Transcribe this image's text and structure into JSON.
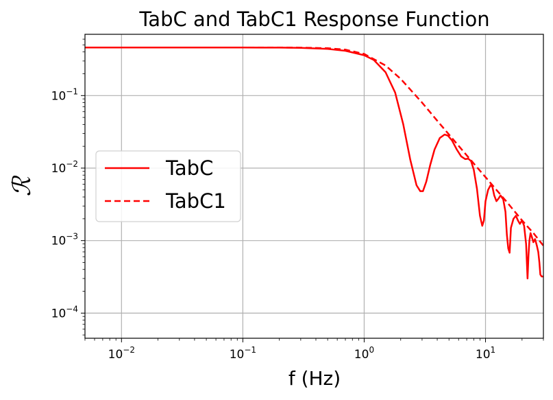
{
  "chart_data": {
    "type": "line",
    "title": "TabC and TabC1 Response Function",
    "xlabel": "f (Hz)",
    "ylabel": "ℛ",
    "xscale": "log",
    "yscale": "log",
    "xlim": [
      0.005,
      30
    ],
    "ylim": [
      4.5e-05,
      0.7
    ],
    "xticks": [
      {
        "value": 0.01,
        "base": "10",
        "exp": "−2"
      },
      {
        "value": 0.1,
        "base": "10",
        "exp": "−1"
      },
      {
        "value": 1,
        "base": "10",
        "exp": "0"
      },
      {
        "value": 10,
        "base": "10",
        "exp": "1"
      }
    ],
    "yticks": [
      {
        "value": 0.0001,
        "base": "10",
        "exp": "−4"
      },
      {
        "value": 0.001,
        "base": "10",
        "exp": "−3"
      },
      {
        "value": 0.01,
        "base": "10",
        "exp": "−2"
      },
      {
        "value": 0.1,
        "base": "10",
        "exp": "−1"
      }
    ],
    "grid": true,
    "legend_position": "center-left",
    "series": [
      {
        "name": "TabC",
        "color": "#ff0000",
        "style": "solid",
        "x": [
          0.005,
          0.01,
          0.05,
          0.1,
          0.2,
          0.3,
          0.5,
          0.7,
          1.0,
          1.2,
          1.5,
          1.8,
          2.1,
          2.4,
          2.7,
          2.9,
          3.05,
          3.25,
          3.5,
          3.8,
          4.2,
          4.6,
          4.9,
          5.3,
          5.8,
          6.3,
          6.8,
          7.2,
          7.6,
          8.0,
          8.5,
          9.0,
          9.4,
          9.7,
          10.0,
          10.5,
          11.0,
          11.4,
          11.8,
          12.3,
          12.8,
          13.3,
          14.0,
          14.6,
          15.0,
          15.4,
          15.8,
          16.2,
          17.0,
          17.8,
          18.5,
          19.2,
          20.0,
          20.8,
          21.6,
          22.2,
          22.6,
          23.0,
          23.5,
          24.0,
          24.8,
          25.6,
          26.5,
          27.2,
          27.8,
          28.3,
          29.0,
          30.0
        ],
        "y": [
          0.46,
          0.46,
          0.46,
          0.46,
          0.459,
          0.455,
          0.44,
          0.415,
          0.36,
          0.31,
          0.21,
          0.11,
          0.04,
          0.013,
          0.0058,
          0.0048,
          0.0048,
          0.0065,
          0.011,
          0.018,
          0.026,
          0.029,
          0.028,
          0.024,
          0.018,
          0.0145,
          0.0133,
          0.0135,
          0.0125,
          0.0095,
          0.0052,
          0.0022,
          0.0016,
          0.0019,
          0.0035,
          0.005,
          0.0058,
          0.0055,
          0.0042,
          0.0035,
          0.0038,
          0.0042,
          0.0037,
          0.0025,
          0.0012,
          0.00078,
          0.00068,
          0.0015,
          0.002,
          0.0022,
          0.0019,
          0.0017,
          0.0019,
          0.0016,
          0.0009,
          0.0003,
          0.00062,
          0.001,
          0.00127,
          0.00115,
          0.00095,
          0.00105,
          0.00085,
          0.0007,
          0.0005,
          0.00034,
          0.00032,
          0.00032
        ]
      },
      {
        "name": "TabC1",
        "color": "#ff0000",
        "style": "dashed",
        "x": [
          0.005,
          0.01,
          0.05,
          0.1,
          0.2,
          0.3,
          0.5,
          0.7,
          1.0,
          1.5,
          2.0,
          3.0,
          4.0,
          5.0,
          7.0,
          10.0,
          15.0,
          20.0,
          25.0,
          30.0
        ],
        "y": [
          0.46,
          0.46,
          0.46,
          0.46,
          0.46,
          0.458,
          0.45,
          0.43,
          0.375,
          0.26,
          0.17,
          0.08,
          0.045,
          0.029,
          0.015,
          0.0075,
          0.0034,
          0.0019,
          0.00125,
          0.00085
        ]
      }
    ]
  }
}
